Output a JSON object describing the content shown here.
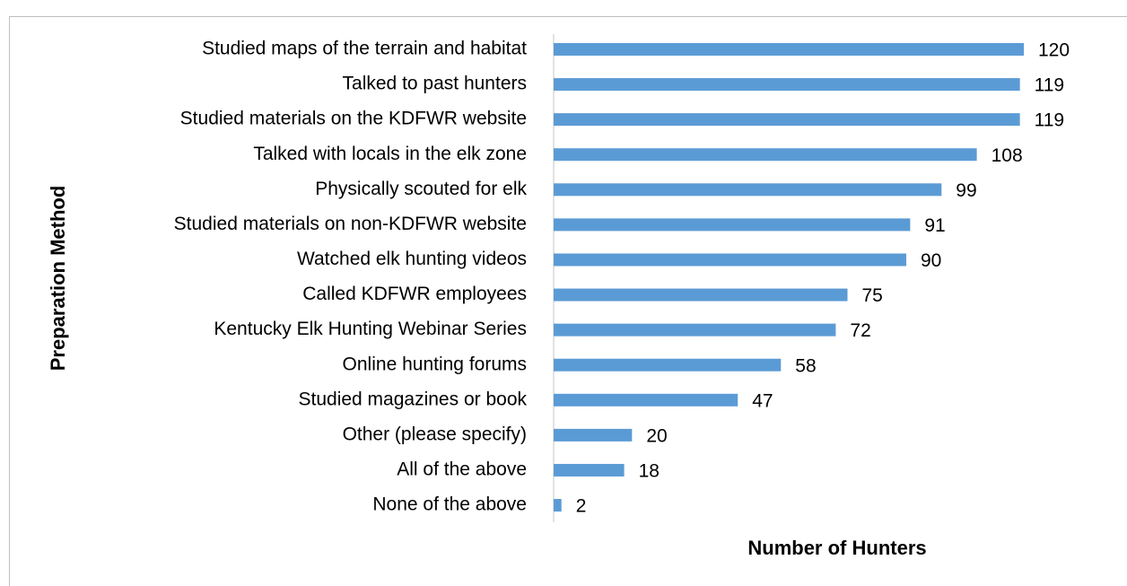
{
  "chart_data": {
    "type": "bar",
    "orientation": "horizontal",
    "y_axis_label": "Preparation Method",
    "x_axis_label": "Number of Hunters",
    "categories": [
      "Studied maps of the terrain and habitat",
      "Talked to past hunters",
      "Studied materials on the KDFWR website",
      "Talked with locals in the elk zone",
      "Physically scouted for elk",
      "Studied materials on non-KDFWR website",
      "Watched elk hunting videos",
      "Called KDFWR employees",
      "Kentucky Elk Hunting Webinar Series",
      "Online hunting forums",
      "Studied magazines or book",
      "Other (please specify)",
      "All of the above",
      "None of the above"
    ],
    "values": [
      120,
      119,
      119,
      108,
      99,
      91,
      90,
      75,
      72,
      58,
      47,
      20,
      18,
      2
    ],
    "color": "#5b9bd5",
    "xlim": [
      0,
      120
    ]
  }
}
